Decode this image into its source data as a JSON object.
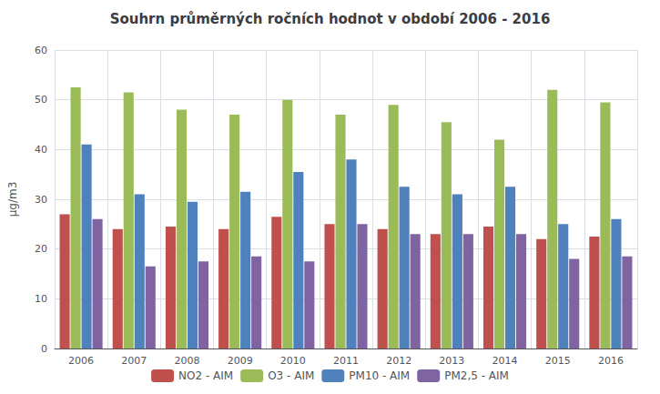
{
  "chart_data": {
    "type": "bar",
    "title": "Souhrn průměrných ročních hodnot v období 2006 - 2016",
    "y_label": "μg/m3",
    "categories": [
      "2006",
      "2007",
      "2008",
      "2009",
      "2010",
      "2011",
      "2012",
      "2013",
      "2014",
      "2015",
      "2016"
    ],
    "series": [
      {
        "name": "NO2 - AIM",
        "color": "#C0504D",
        "values": [
          27,
          24,
          24.5,
          24,
          26.5,
          25,
          24,
          23,
          24.5,
          22,
          22.5
        ]
      },
      {
        "name": "O3 - AIM",
        "color": "#9BBB59",
        "values": [
          52.5,
          51.5,
          48,
          47,
          50,
          47,
          49,
          45.5,
          42,
          52,
          49.5
        ]
      },
      {
        "name": "PM10 - AIM",
        "color": "#4F81BD",
        "values": [
          41,
          31,
          29.5,
          31.5,
          35.5,
          38,
          32.5,
          31,
          32.5,
          25,
          26
        ]
      },
      {
        "name": "PM2,5 - AIM",
        "color": "#8064A2",
        "values": [
          26,
          16.5,
          17.5,
          18.5,
          17.5,
          25,
          23,
          23,
          23,
          18,
          18.5
        ]
      }
    ],
    "ylim": [
      0,
      60
    ],
    "yticks": [
      0,
      10,
      20,
      30,
      40,
      50,
      60
    ],
    "grid": true,
    "legend": "bottom"
  }
}
